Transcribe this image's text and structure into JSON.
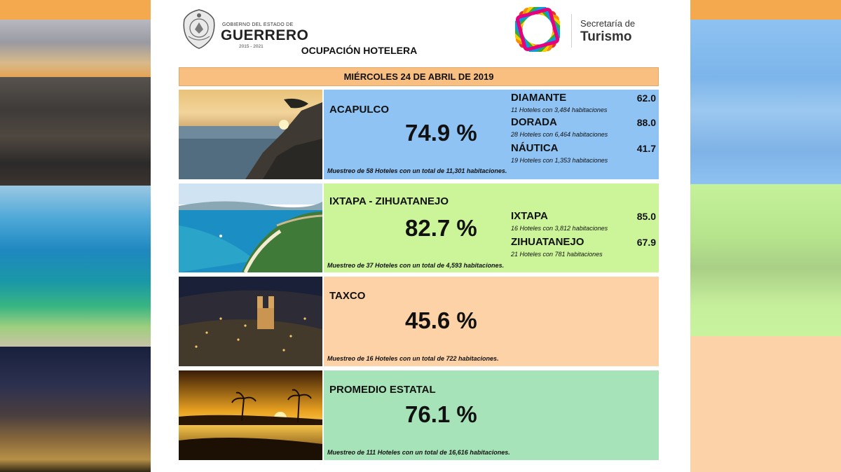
{
  "header": {
    "gov_small": "GOBIERNO DEL ESTADO DE",
    "gov_name": "GUERRERO",
    "gov_years": "2015 - 2021",
    "tur_line1": "Secretaría de",
    "tur_line2": "Turismo",
    "title": "OCUPACIÓN HOTELERA",
    "date": "MIÉRCOLES 24 DE ABRIL DE 2019"
  },
  "regions": [
    {
      "name": "ACAPULCO",
      "percent": "74.9 %",
      "sample": "Muestreo de 58 Hoteles con un total de 11,301 habitaciones.",
      "color": "#8fc3f4",
      "subs": [
        {
          "name": "DIAMANTE",
          "value": "62.0",
          "note": "11 Hoteles con 3,484 habitaciones"
        },
        {
          "name": "DORADA",
          "value": "88.0",
          "note": "28 Hoteles con 6,464 habitaciones"
        },
        {
          "name": "NÁUTICA",
          "value": "41.7",
          "note": "19 Hoteles con 1,353 habitaciones"
        }
      ]
    },
    {
      "name": "IXTAPA - ZIHUATANEJO",
      "percent": "82.7 %",
      "sample": "Muestreo de 37 Hoteles con un total de 4,593 habitaciones.",
      "color": "#ccf59a",
      "subs": [
        {
          "name": "IXTAPA",
          "value": "85.0",
          "note": "16 Hoteles con 3,812 habitaciones"
        },
        {
          "name": "ZIHUATANEJO",
          "value": "67.9",
          "note": "21 Hoteles con 781 habitaciones"
        }
      ]
    },
    {
      "name": "TAXCO",
      "percent": "45.6 %",
      "sample": "Muestreo de 16 Hoteles con un total de 722 habitaciones.",
      "color": "#fdd2a6",
      "subs": []
    },
    {
      "name": "PROMEDIO ESTATAL",
      "percent": "76.1 %",
      "sample": "Muestreo de 111 Hoteles con un total de 16,616 habitaciones.",
      "color": "#a7e3b8",
      "subs": []
    }
  ]
}
